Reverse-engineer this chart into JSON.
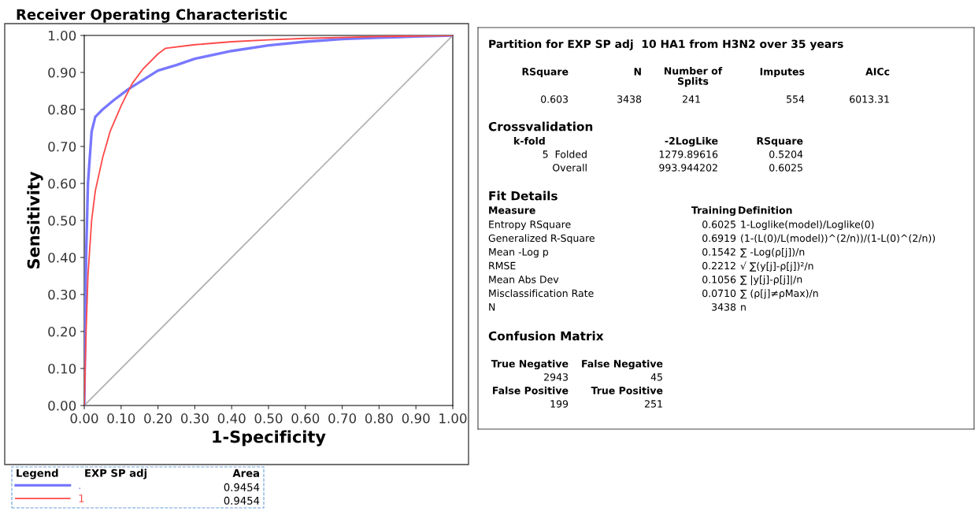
{
  "chart_data": [
    {
      "type": "line",
      "title": "Receiver Operating Characteristic",
      "xlabel": "1-Specificity",
      "ylabel": "Sensitivity",
      "series": [
        {
          "name": ".",
          "color": "#7878ff",
          "x": [
            0,
            0.005,
            0.01,
            0.02,
            0.03,
            0.05,
            0.08,
            0.12,
            0.16,
            0.2,
            0.25,
            0.3,
            0.4,
            0.5,
            0.6,
            0.7,
            0.8,
            0.9,
            1
          ],
          "values": [
            0,
            0.4,
            0.6,
            0.74,
            0.78,
            0.8,
            0.825,
            0.855,
            0.88,
            0.905,
            0.92,
            0.937,
            0.958,
            0.973,
            0.983,
            0.99,
            0.994,
            0.997,
            1
          ]
        },
        {
          "name": "1",
          "color": "#ff4848",
          "x": [
            0,
            0.005,
            0.01,
            0.02,
            0.03,
            0.05,
            0.07,
            0.1,
            0.13,
            0.16,
            0.2,
            0.22,
            0.3,
            0.4,
            0.5,
            0.6,
            0.8,
            1
          ],
          "values": [
            0,
            0.2,
            0.35,
            0.5,
            0.58,
            0.67,
            0.74,
            0.81,
            0.87,
            0.91,
            0.95,
            0.965,
            0.975,
            0.983,
            0.988,
            0.992,
            0.997,
            1
          ]
        },
        {
          "color": "#b4b4b4",
          "x": [
            0,
            1
          ],
          "values": [
            0,
            1
          ]
        }
      ],
      "xlim": [
        0,
        1
      ],
      "ylim": [
        0,
        1
      ],
      "xticks": [
        {
          "value": 0,
          "label": "0.00"
        },
        {
          "value": 0.1,
          "label": "0.10"
        },
        {
          "value": 0.2,
          "label": "0.20"
        },
        {
          "value": 0.3,
          "label": "0.30"
        },
        {
          "value": 0.4,
          "label": "0.40"
        },
        {
          "value": 0.5,
          "label": "0.50"
        },
        {
          "value": 0.6,
          "label": "0.60"
        },
        {
          "value": 0.7,
          "label": "0.70"
        },
        {
          "value": 0.8,
          "label": "0.80"
        },
        {
          "value": 0.9,
          "label": "0.90"
        },
        {
          "value": 1,
          "label": "1.00"
        }
      ],
      "yticks": [
        {
          "value": 0,
          "label": "0.00"
        },
        {
          "value": 0.1,
          "label": "0.10"
        },
        {
          "value": 0.2,
          "label": "0.20"
        },
        {
          "value": 0.3,
          "label": "0.30"
        },
        {
          "value": 0.4,
          "label": "0.40"
        },
        {
          "value": 0.5,
          "label": "0.50"
        },
        {
          "value": 0.6,
          "label": "0.60"
        },
        {
          "value": 0.7,
          "label": "0.70"
        },
        {
          "value": 0.8,
          "label": "0.80"
        },
        {
          "value": 0.9,
          "label": "0.90"
        },
        {
          "value": 1,
          "label": "1.00"
        }
      ],
      "grid": false,
      "legend": "bottom",
      "legend_title": "Legend",
      "annotations": [
        "EXP SP adj",
        "Area",
        "0.9454",
        "0.9454"
      ]
    },
    {
      "type": "other",
      "title": "Partition for EXP SP adj  10 HA1 from H3N2 over 35 years",
      "annotations": [
        "RSquare",
        "N",
        "Number of\nSplits",
        "Imputes",
        "AICc",
        "0.603",
        "3438",
        "241",
        "554",
        "6013.31",
        "Crossvalidation",
        "k-fold",
        "-2LogLike",
        "RSquare",
        "5  Folded",
        "1279.89616",
        "0.5204",
        "Overall",
        "993.944202",
        "0.6025",
        "Fit Details",
        "Measure",
        "Training",
        "Definition",
        "Entropy RSquare",
        "0.6025",
        "1-Loglike(model)/Loglike(0)",
        "Generalized R-Square",
        "0.6919",
        "(1-(L(0)/L(model))^(2/n))/(1-L(0)^(2/n))",
        "Mean -Log p",
        "0.1542",
        "∑ -Log(ρ[j])/n",
        "RMSE",
        "0.2212",
        "√ ∑(y[j]-ρ[j])²/n",
        "Mean Abs Dev",
        "0.1056",
        "∑ |y[j]-ρ[j]|/n",
        "Misclassification Rate",
        "0.0710",
        "∑ (ρ[j]≠ρMax)/n",
        "N",
        "3438",
        "n",
        "Confusion Matrix",
        "True Negative",
        "False Negative",
        "2943",
        "45",
        "False Positive",
        "True Positive",
        "199",
        "251"
      ]
    }
  ]
}
